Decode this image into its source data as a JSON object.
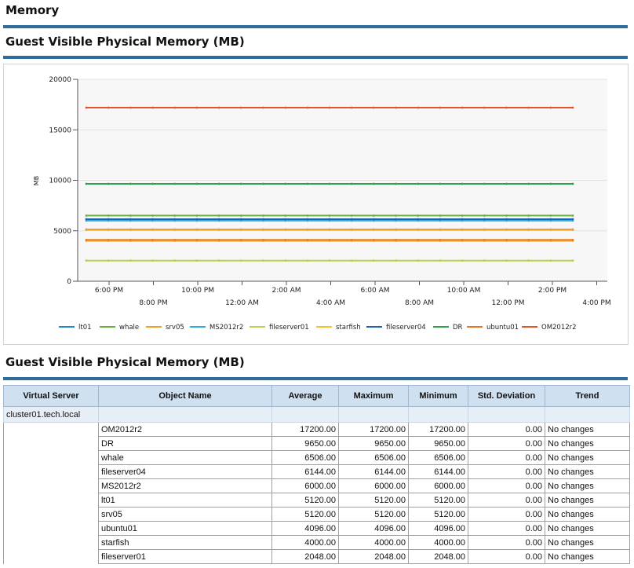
{
  "page": {
    "section_title": "Memory",
    "chart_title": "Guest Visible Physical Memory (MB)",
    "table_title": "Guest Visible Physical Memory (MB)"
  },
  "colors": {
    "rule": "#2d6c9c",
    "header_bg": "#cfe0f0",
    "group_bg": "#e6eef7"
  },
  "chart_data": {
    "type": "line",
    "ylabel": "MB",
    "ylim": [
      0,
      20000
    ],
    "yticks": [
      0,
      5000,
      10000,
      15000,
      20000
    ],
    "xticks": [
      "6:00 PM",
      "8:00 PM",
      "10:00 PM",
      "12:00 AM",
      "2:00 AM",
      "4:00 AM",
      "6:00 AM",
      "8:00 AM",
      "10:00 AM",
      "12:00 PM",
      "2:00 PM",
      "4:00 PM"
    ],
    "x": [
      "5:00 PM",
      "6:00 PM",
      "7:00 PM",
      "8:00 PM",
      "9:00 PM",
      "10:00 PM",
      "11:00 PM",
      "12:00 AM",
      "1:00 AM",
      "2:00 AM",
      "3:00 AM",
      "4:00 AM",
      "5:00 AM",
      "6:00 AM",
      "7:00 AM",
      "8:00 AM",
      "9:00 AM",
      "10:00 AM",
      "11:00 AM",
      "12:00 PM",
      "1:00 PM",
      "2:00 PM",
      "3:00 PM"
    ],
    "legend_position": "bottom",
    "grid": true,
    "series": [
      {
        "name": "lt01",
        "value": 5120,
        "color": "#1e88d0"
      },
      {
        "name": "whale",
        "value": 6506,
        "color": "#6aaf3a"
      },
      {
        "name": "srv05",
        "value": 5120,
        "color": "#f0a020"
      },
      {
        "name": "MS2012r2",
        "value": 6000,
        "color": "#2ab0e0"
      },
      {
        "name": "fileserver01",
        "value": 2048,
        "color": "#b8d14a"
      },
      {
        "name": "starfish",
        "value": 4000,
        "color": "#f4c020"
      },
      {
        "name": "fileserver04",
        "value": 6144,
        "color": "#2160b0"
      },
      {
        "name": "DR",
        "value": 9650,
        "color": "#2ea24a"
      },
      {
        "name": "ubuntu01",
        "value": 4096,
        "color": "#ee7020"
      },
      {
        "name": "OM2012r2",
        "value": 17200,
        "color": "#e8522a"
      }
    ]
  },
  "table": {
    "headers": [
      "Virtual Server",
      "Object Name",
      "Average",
      "Maximum",
      "Minimum",
      "Std. Deviation",
      "Trend"
    ],
    "group": "cluster01.tech.local",
    "rows": [
      [
        "OM2012r2",
        "17200.00",
        "17200.00",
        "17200.00",
        "0.00",
        "No changes"
      ],
      [
        "DR",
        "9650.00",
        "9650.00",
        "9650.00",
        "0.00",
        "No changes"
      ],
      [
        "whale",
        "6506.00",
        "6506.00",
        "6506.00",
        "0.00",
        "No changes"
      ],
      [
        "fileserver04",
        "6144.00",
        "6144.00",
        "6144.00",
        "0.00",
        "No changes"
      ],
      [
        "MS2012r2",
        "6000.00",
        "6000.00",
        "6000.00",
        "0.00",
        "No changes"
      ],
      [
        "lt01",
        "5120.00",
        "5120.00",
        "5120.00",
        "0.00",
        "No changes"
      ],
      [
        "srv05",
        "5120.00",
        "5120.00",
        "5120.00",
        "0.00",
        "No changes"
      ],
      [
        "ubuntu01",
        "4096.00",
        "4096.00",
        "4096.00",
        "0.00",
        "No changes"
      ],
      [
        "starfish",
        "4000.00",
        "4000.00",
        "4000.00",
        "0.00",
        "No changes"
      ],
      [
        "fileserver01",
        "2048.00",
        "2048.00",
        "2048.00",
        "0.00",
        "No changes"
      ]
    ]
  }
}
